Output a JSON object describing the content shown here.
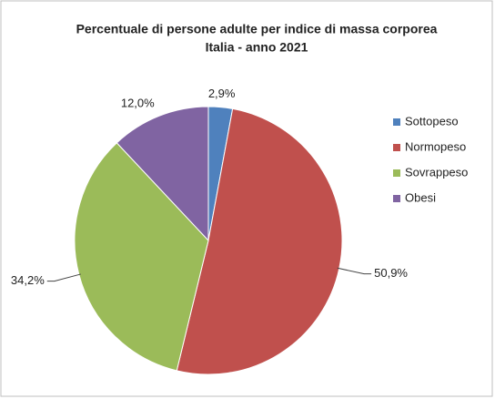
{
  "chart_data": {
    "type": "pie",
    "title": "Percentuale di persone adulte per indice di massa corporea",
    "subtitle": "Italia - anno 2021",
    "categories": [
      "Sottopeso",
      "Normopeso",
      "Sovrappeso",
      "Obesi"
    ],
    "values": [
      2.9,
      50.9,
      34.2,
      12.0
    ],
    "value_labels": [
      "2,9%",
      "50,9%",
      "34,2%",
      "12,0%"
    ],
    "colors": [
      "#4f81bd",
      "#c0504d",
      "#9bbb59",
      "#8064a2"
    ],
    "legend": "right"
  }
}
